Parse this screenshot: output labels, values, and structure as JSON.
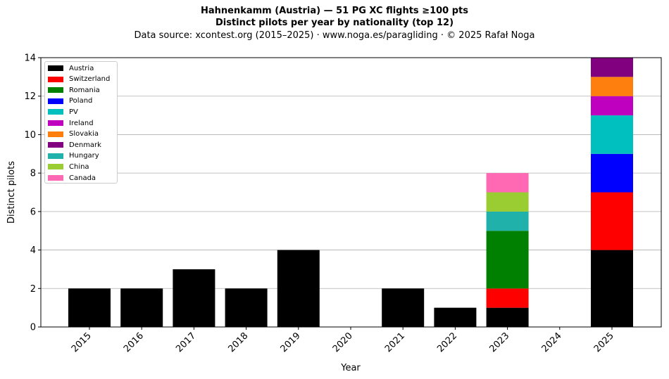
{
  "title_line1": "Hahnenkamm (Austria)  —  51 PG XC flights ≥100 pts",
  "title_line2": "Distinct pilots per year by nationality (top 12)",
  "subtitle": "Data source: xcontest.org (2015–2025)  ·  www.noga.es/paragliding  ·  © 2025 Rafał Noga",
  "chart_data": {
    "type": "bar",
    "stacked": true,
    "xlabel": "Year",
    "ylabel": "Distinct pilots",
    "ylim": [
      0,
      14
    ],
    "yticks": [
      0,
      2,
      4,
      6,
      8,
      10,
      12,
      14
    ],
    "grid": "horizontal",
    "legend_position": "top-left",
    "categories": [
      "2015",
      "2016",
      "2017",
      "2018",
      "2019",
      "2020",
      "2021",
      "2022",
      "2023",
      "2024",
      "2025"
    ],
    "series": [
      {
        "name": "Austria",
        "color": "#000000",
        "values": [
          2,
          2,
          3,
          2,
          4,
          0,
          2,
          1,
          1,
          0,
          4
        ]
      },
      {
        "name": "Switzerland",
        "color": "#ff0000",
        "values": [
          0,
          0,
          0,
          0,
          0,
          0,
          0,
          0,
          1,
          0,
          3
        ]
      },
      {
        "name": "Romania",
        "color": "#008000",
        "values": [
          0,
          0,
          0,
          0,
          0,
          0,
          0,
          0,
          3,
          0,
          0
        ]
      },
      {
        "name": "Poland",
        "color": "#0000ff",
        "values": [
          0,
          0,
          0,
          0,
          0,
          0,
          0,
          0,
          0,
          0,
          2
        ]
      },
      {
        "name": "PV",
        "color": "#00bfbf",
        "values": [
          0,
          0,
          0,
          0,
          0,
          0,
          0,
          0,
          0,
          0,
          2
        ]
      },
      {
        "name": "Ireland",
        "color": "#bf00bf",
        "values": [
          0,
          0,
          0,
          0,
          0,
          0,
          0,
          0,
          0,
          0,
          1
        ]
      },
      {
        "name": "Slovakia",
        "color": "#ff7f0e",
        "values": [
          0,
          0,
          0,
          0,
          0,
          0,
          0,
          0,
          0,
          0,
          1
        ]
      },
      {
        "name": "Denmark",
        "color": "#800080",
        "values": [
          0,
          0,
          0,
          0,
          0,
          0,
          0,
          0,
          0,
          0,
          1
        ]
      },
      {
        "name": "Hungary",
        "color": "#20b2aa",
        "values": [
          0,
          0,
          0,
          0,
          0,
          0,
          0,
          0,
          1,
          0,
          0
        ]
      },
      {
        "name": "China",
        "color": "#9acd32",
        "values": [
          0,
          0,
          0,
          0,
          0,
          0,
          0,
          0,
          1,
          0,
          0
        ]
      },
      {
        "name": "Canada",
        "color": "#ff69b4",
        "values": [
          0,
          0,
          0,
          0,
          0,
          0,
          0,
          0,
          1,
          0,
          0
        ]
      }
    ]
  }
}
